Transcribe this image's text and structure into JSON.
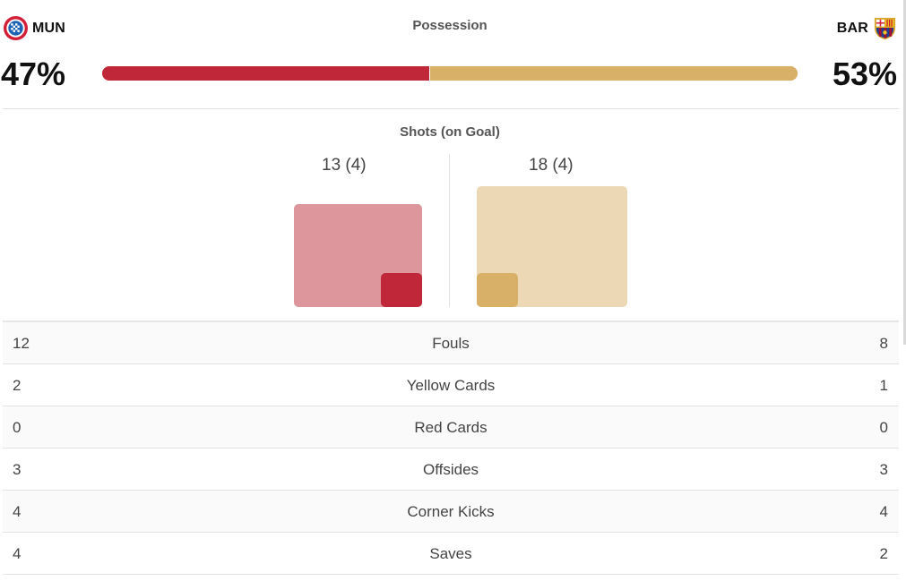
{
  "home": {
    "abbr": "MUN",
    "crest_icon": "bayern-crest-icon",
    "color_primary": "#c0283a",
    "color_light": "#dd969b"
  },
  "away": {
    "abbr": "BAR",
    "crest_icon": "barcelona-crest-icon",
    "color_primary": "#d8b068",
    "color_light": "#ecd8b5"
  },
  "possession": {
    "title": "Possession",
    "home_pct": 47,
    "away_pct": 53,
    "home_label": "47%",
    "away_label": "53%"
  },
  "shots": {
    "title": "Shots (on Goal)",
    "home_total": 13,
    "home_on_goal": 4,
    "away_total": 18,
    "away_on_goal": 4,
    "home_label": "13 (4)",
    "away_label": "18 (4)"
  },
  "stats": [
    {
      "label": "Fouls",
      "home": "12",
      "away": "8"
    },
    {
      "label": "Yellow Cards",
      "home": "2",
      "away": "1"
    },
    {
      "label": "Red Cards",
      "home": "0",
      "away": "0"
    },
    {
      "label": "Offsides",
      "home": "3",
      "away": "3"
    },
    {
      "label": "Corner Kicks",
      "home": "4",
      "away": "4"
    },
    {
      "label": "Saves",
      "home": "4",
      "away": "2"
    }
  ]
}
